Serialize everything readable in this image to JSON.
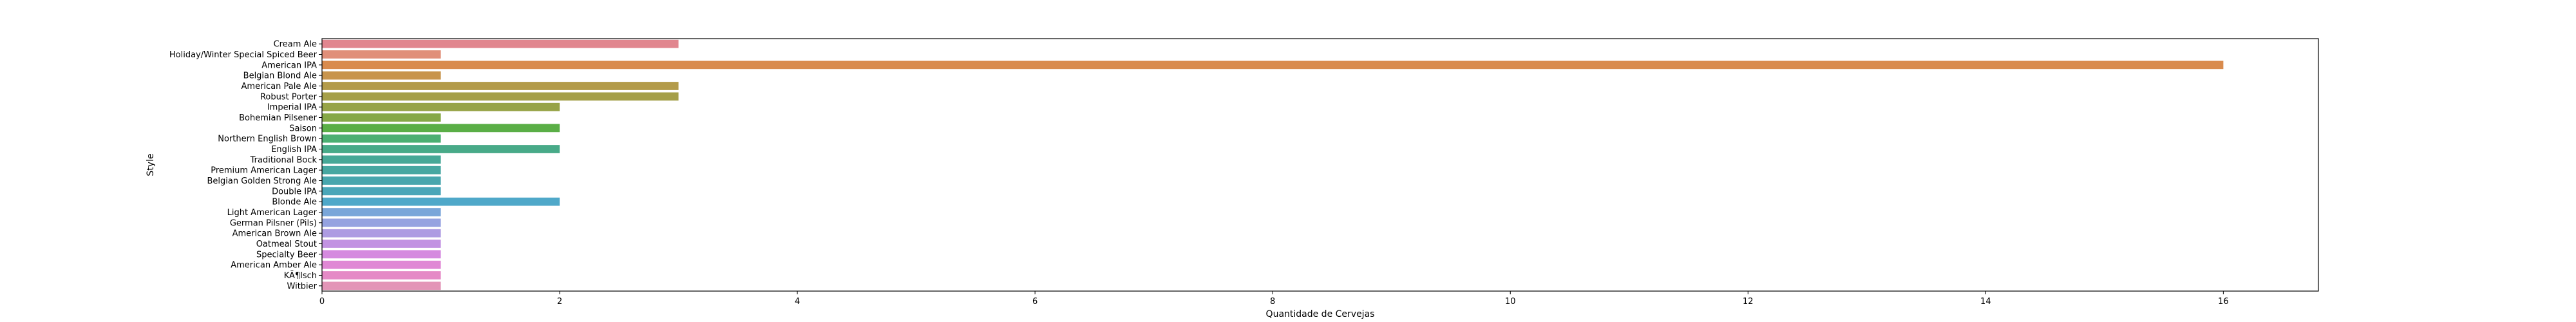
{
  "chart_data": {
    "type": "bar",
    "orientation": "horizontal",
    "title": "",
    "xlabel": "Quantidade de Cervejas",
    "ylabel": "Style",
    "xlim": [
      0,
      16.8
    ],
    "xticks": [
      0,
      2,
      4,
      6,
      8,
      10,
      12,
      14,
      16
    ],
    "grid": false,
    "categories": [
      "Cream Ale",
      "Holiday/Winter Special Spiced Beer",
      "American IPA",
      "Belgian Blond Ale",
      "American Pale Ale",
      "Robust Porter",
      "Imperial IPA",
      "Bohemian Pilsener",
      "Saison",
      "Northern English Brown",
      "English IPA",
      "Traditional Bock",
      "Premium American Lager",
      "Belgian Golden Strong Ale",
      "Double IPA",
      "Blonde Ale",
      "Light American Lager",
      "German Pilsner (Pils)",
      "American Brown Ale",
      "Oatmeal Stout",
      "Specialty Beer",
      "American Amber Ale",
      "KÃ¶lsch",
      "Witbier"
    ],
    "values": [
      3,
      1,
      16,
      1,
      3,
      3,
      2,
      1,
      2,
      1,
      2,
      1,
      1,
      1,
      1,
      2,
      1,
      1,
      1,
      1,
      1,
      1,
      1,
      1
    ],
    "colors": [
      "#e1868f",
      "#e08f79",
      "#d98b4d",
      "#c8944c",
      "#b39b4a",
      "#a59f49",
      "#97a347",
      "#86a846",
      "#5aae46",
      "#4caf72",
      "#48aa88",
      "#47a897",
      "#47a7a1",
      "#48a6ad",
      "#4aa6b8",
      "#4fa8c9",
      "#7aa6d9",
      "#95a2e0",
      "#ad9be2",
      "#c292e2",
      "#d58adf",
      "#e088d5",
      "#e58ac6",
      "#e395b7"
    ]
  }
}
